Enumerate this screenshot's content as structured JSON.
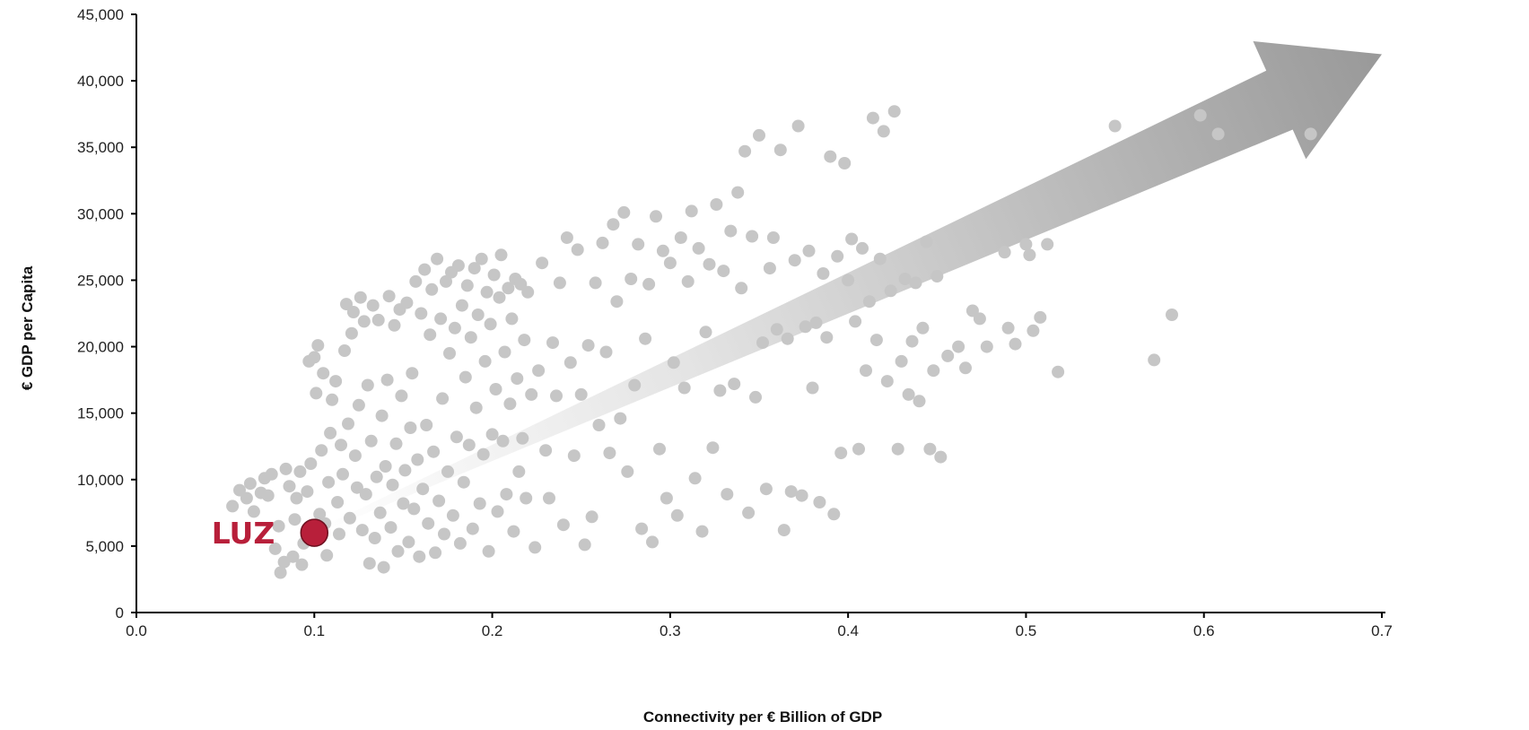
{
  "chart_data": {
    "type": "scatter",
    "title": "",
    "xlabel": "Connectivity per € Billion of GDP",
    "ylabel": "€ GDP per Capita",
    "xlim": [
      0,
      0.7
    ],
    "ylim": [
      0,
      45000
    ],
    "x_ticks": [
      "0.0",
      "0.1",
      "0.2",
      "0.3",
      "0.4",
      "0.5",
      "0.6",
      "0.7"
    ],
    "y_ticks": [
      "0",
      "5,000",
      "10,000",
      "15,000",
      "20,000",
      "25,000",
      "30,000",
      "35,000",
      "40,000",
      "45,000"
    ],
    "grid": false,
    "trend_arrow": {
      "from": [
        0.1,
        6000
      ],
      "to": [
        0.7,
        42000
      ],
      "color": "#a0a0a0"
    },
    "highlight": {
      "label": "LUZ",
      "x": 0.1,
      "y": 6000,
      "color": "#b81f3a"
    },
    "points_color": "#c6c6c6",
    "points": [
      [
        0.054,
        8000
      ],
      [
        0.058,
        9200
      ],
      [
        0.062,
        8600
      ],
      [
        0.064,
        9700
      ],
      [
        0.066,
        7600
      ],
      [
        0.07,
        9000
      ],
      [
        0.072,
        10100
      ],
      [
        0.074,
        8800
      ],
      [
        0.076,
        10400
      ],
      [
        0.078,
        4800
      ],
      [
        0.08,
        6500
      ],
      [
        0.081,
        3000
      ],
      [
        0.083,
        3800
      ],
      [
        0.084,
        10800
      ],
      [
        0.086,
        9500
      ],
      [
        0.088,
        4200
      ],
      [
        0.089,
        7000
      ],
      [
        0.09,
        8600
      ],
      [
        0.092,
        10600
      ],
      [
        0.093,
        3600
      ],
      [
        0.094,
        5200
      ],
      [
        0.096,
        9100
      ],
      [
        0.097,
        18900
      ],
      [
        0.098,
        11200
      ],
      [
        0.1,
        19200
      ],
      [
        0.101,
        16500
      ],
      [
        0.102,
        20100
      ],
      [
        0.103,
        7400
      ],
      [
        0.104,
        12200
      ],
      [
        0.105,
        18000
      ],
      [
        0.106,
        6700
      ],
      [
        0.107,
        4300
      ],
      [
        0.108,
        9800
      ],
      [
        0.109,
        13500
      ],
      [
        0.11,
        16000
      ],
      [
        0.112,
        17400
      ],
      [
        0.113,
        8300
      ],
      [
        0.114,
        5900
      ],
      [
        0.115,
        12600
      ],
      [
        0.116,
        10400
      ],
      [
        0.117,
        19700
      ],
      [
        0.118,
        23200
      ],
      [
        0.119,
        14200
      ],
      [
        0.12,
        7100
      ],
      [
        0.121,
        21000
      ],
      [
        0.122,
        22600
      ],
      [
        0.123,
        11800
      ],
      [
        0.124,
        9400
      ],
      [
        0.125,
        15600
      ],
      [
        0.126,
        23700
      ],
      [
        0.127,
        6200
      ],
      [
        0.128,
        21900
      ],
      [
        0.129,
        8900
      ],
      [
        0.13,
        17100
      ],
      [
        0.131,
        3700
      ],
      [
        0.132,
        12900
      ],
      [
        0.133,
        23100
      ],
      [
        0.134,
        5600
      ],
      [
        0.135,
        10200
      ],
      [
        0.136,
        22000
      ],
      [
        0.137,
        7500
      ],
      [
        0.138,
        14800
      ],
      [
        0.139,
        3400
      ],
      [
        0.14,
        11000
      ],
      [
        0.141,
        17500
      ],
      [
        0.142,
        23800
      ],
      [
        0.143,
        6400
      ],
      [
        0.144,
        9600
      ],
      [
        0.145,
        21600
      ],
      [
        0.146,
        12700
      ],
      [
        0.147,
        4600
      ],
      [
        0.148,
        22800
      ],
      [
        0.149,
        16300
      ],
      [
        0.15,
        8200
      ],
      [
        0.151,
        10700
      ],
      [
        0.152,
        23300
      ],
      [
        0.153,
        5300
      ],
      [
        0.154,
        13900
      ],
      [
        0.155,
        18000
      ],
      [
        0.156,
        7800
      ],
      [
        0.157,
        24900
      ],
      [
        0.158,
        11500
      ],
      [
        0.159,
        4200
      ],
      [
        0.16,
        22500
      ],
      [
        0.161,
        9300
      ],
      [
        0.162,
        25800
      ],
      [
        0.163,
        14100
      ],
      [
        0.164,
        6700
      ],
      [
        0.165,
        20900
      ],
      [
        0.166,
        24300
      ],
      [
        0.167,
        12100
      ],
      [
        0.168,
        4500
      ],
      [
        0.169,
        26600
      ],
      [
        0.17,
        8400
      ],
      [
        0.171,
        22100
      ],
      [
        0.172,
        16100
      ],
      [
        0.173,
        5900
      ],
      [
        0.174,
        24900
      ],
      [
        0.175,
        10600
      ],
      [
        0.176,
        19500
      ],
      [
        0.177,
        25600
      ],
      [
        0.178,
        7300
      ],
      [
        0.179,
        21400
      ],
      [
        0.18,
        13200
      ],
      [
        0.181,
        26100
      ],
      [
        0.182,
        5200
      ],
      [
        0.183,
        23100
      ],
      [
        0.184,
        9800
      ],
      [
        0.185,
        17700
      ],
      [
        0.186,
        24600
      ],
      [
        0.187,
        12600
      ],
      [
        0.188,
        20700
      ],
      [
        0.189,
        6300
      ],
      [
        0.19,
        25900
      ],
      [
        0.191,
        15400
      ],
      [
        0.192,
        22400
      ],
      [
        0.193,
        8200
      ],
      [
        0.194,
        26600
      ],
      [
        0.195,
        11900
      ],
      [
        0.196,
        18900
      ],
      [
        0.197,
        24100
      ],
      [
        0.198,
        4600
      ],
      [
        0.199,
        21700
      ],
      [
        0.2,
        13400
      ],
      [
        0.201,
        25400
      ],
      [
        0.202,
        16800
      ],
      [
        0.203,
        7600
      ],
      [
        0.204,
        23700
      ],
      [
        0.205,
        26900
      ],
      [
        0.206,
        12900
      ],
      [
        0.207,
        19600
      ],
      [
        0.208,
        8900
      ],
      [
        0.209,
        24400
      ],
      [
        0.21,
        15700
      ],
      [
        0.211,
        22100
      ],
      [
        0.212,
        6100
      ],
      [
        0.213,
        25100
      ],
      [
        0.214,
        17600
      ],
      [
        0.215,
        10600
      ],
      [
        0.216,
        24700
      ],
      [
        0.217,
        13100
      ],
      [
        0.218,
        20500
      ],
      [
        0.219,
        8600
      ],
      [
        0.22,
        24100
      ],
      [
        0.222,
        16400
      ],
      [
        0.224,
        4900
      ],
      [
        0.226,
        18200
      ],
      [
        0.228,
        26300
      ],
      [
        0.23,
        12200
      ],
      [
        0.232,
        8600
      ],
      [
        0.234,
        20300
      ],
      [
        0.236,
        16300
      ],
      [
        0.238,
        24800
      ],
      [
        0.24,
        6600
      ],
      [
        0.242,
        28200
      ],
      [
        0.244,
        18800
      ],
      [
        0.246,
        11800
      ],
      [
        0.248,
        27300
      ],
      [
        0.25,
        16400
      ],
      [
        0.252,
        5100
      ],
      [
        0.254,
        20100
      ],
      [
        0.256,
        7200
      ],
      [
        0.258,
        24800
      ],
      [
        0.26,
        14100
      ],
      [
        0.262,
        27800
      ],
      [
        0.264,
        19600
      ],
      [
        0.266,
        12000
      ],
      [
        0.268,
        29200
      ],
      [
        0.27,
        23400
      ],
      [
        0.272,
        14600
      ],
      [
        0.274,
        30100
      ],
      [
        0.276,
        10600
      ],
      [
        0.278,
        25100
      ],
      [
        0.28,
        17100
      ],
      [
        0.282,
        27700
      ],
      [
        0.284,
        6300
      ],
      [
        0.286,
        20600
      ],
      [
        0.288,
        24700
      ],
      [
        0.29,
        5300
      ],
      [
        0.292,
        29800
      ],
      [
        0.294,
        12300
      ],
      [
        0.296,
        27200
      ],
      [
        0.298,
        8600
      ],
      [
        0.3,
        26300
      ],
      [
        0.302,
        18800
      ],
      [
        0.304,
        7300
      ],
      [
        0.306,
        28200
      ],
      [
        0.308,
        16900
      ],
      [
        0.31,
        24900
      ],
      [
        0.312,
        30200
      ],
      [
        0.314,
        10100
      ],
      [
        0.316,
        27400
      ],
      [
        0.318,
        6100
      ],
      [
        0.32,
        21100
      ],
      [
        0.322,
        26200
      ],
      [
        0.324,
        12400
      ],
      [
        0.326,
        30700
      ],
      [
        0.328,
        16700
      ],
      [
        0.33,
        25700
      ],
      [
        0.332,
        8900
      ],
      [
        0.334,
        28700
      ],
      [
        0.336,
        17200
      ],
      [
        0.338,
        31600
      ],
      [
        0.34,
        24400
      ],
      [
        0.342,
        34700
      ],
      [
        0.344,
        7500
      ],
      [
        0.346,
        28300
      ],
      [
        0.348,
        16200
      ],
      [
        0.35,
        35900
      ],
      [
        0.352,
        20300
      ],
      [
        0.354,
        9300
      ],
      [
        0.356,
        25900
      ],
      [
        0.358,
        28200
      ],
      [
        0.36,
        21300
      ],
      [
        0.362,
        34800
      ],
      [
        0.364,
        6200
      ],
      [
        0.366,
        20600
      ],
      [
        0.368,
        9100
      ],
      [
        0.37,
        26500
      ],
      [
        0.372,
        36600
      ],
      [
        0.374,
        8800
      ],
      [
        0.376,
        21500
      ],
      [
        0.378,
        27200
      ],
      [
        0.38,
        16900
      ],
      [
        0.382,
        21800
      ],
      [
        0.384,
        8300
      ],
      [
        0.386,
        25500
      ],
      [
        0.388,
        20700
      ],
      [
        0.39,
        34300
      ],
      [
        0.392,
        7400
      ],
      [
        0.394,
        26800
      ],
      [
        0.396,
        12000
      ],
      [
        0.398,
        33800
      ],
      [
        0.4,
        25000
      ],
      [
        0.402,
        28100
      ],
      [
        0.404,
        21900
      ],
      [
        0.406,
        12300
      ],
      [
        0.408,
        27400
      ],
      [
        0.41,
        18200
      ],
      [
        0.412,
        23400
      ],
      [
        0.414,
        37200
      ],
      [
        0.416,
        20500
      ],
      [
        0.418,
        26600
      ],
      [
        0.42,
        36200
      ],
      [
        0.422,
        17400
      ],
      [
        0.424,
        24200
      ],
      [
        0.426,
        37700
      ],
      [
        0.428,
        12300
      ],
      [
        0.43,
        18900
      ],
      [
        0.432,
        25100
      ],
      [
        0.434,
        16400
      ],
      [
        0.436,
        20400
      ],
      [
        0.438,
        24800
      ],
      [
        0.44,
        15900
      ],
      [
        0.442,
        21400
      ],
      [
        0.444,
        27900
      ],
      [
        0.446,
        12300
      ],
      [
        0.448,
        18200
      ],
      [
        0.45,
        25300
      ],
      [
        0.452,
        11700
      ],
      [
        0.456,
        19300
      ],
      [
        0.462,
        20000
      ],
      [
        0.466,
        18400
      ],
      [
        0.47,
        22700
      ],
      [
        0.474,
        22100
      ],
      [
        0.478,
        20000
      ],
      [
        0.488,
        27100
      ],
      [
        0.49,
        21400
      ],
      [
        0.494,
        20200
      ],
      [
        0.5,
        27700
      ],
      [
        0.502,
        26900
      ],
      [
        0.504,
        21200
      ],
      [
        0.508,
        22200
      ],
      [
        0.512,
        27700
      ],
      [
        0.518,
        18100
      ],
      [
        0.55,
        36600
      ],
      [
        0.572,
        19000
      ],
      [
        0.582,
        22400
      ],
      [
        0.598,
        37400
      ],
      [
        0.608,
        36000
      ],
      [
        0.66,
        36000
      ]
    ]
  }
}
